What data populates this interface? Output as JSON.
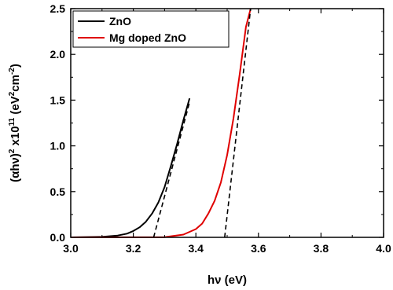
{
  "chart_data": {
    "type": "line",
    "xlabel": "hν (eV)",
    "ylabel": {
      "prefix": "(αhν)",
      "sup1": "2",
      "mid": " x10",
      "sup2": "11",
      "unit_open": " (eV",
      "sup3": "2",
      "unit_mid": "cm",
      "sup4": "-2",
      "unit_close": ")"
    },
    "xlim": [
      3.0,
      4.0
    ],
    "ylim": [
      0.0,
      2.5
    ],
    "xticks": [
      {
        "value": 3.0,
        "label": "3.0"
      },
      {
        "value": 3.2,
        "label": "3.2"
      },
      {
        "value": 3.4,
        "label": "3.4"
      },
      {
        "value": 3.6,
        "label": "3.6"
      },
      {
        "value": 3.8,
        "label": "3.8"
      },
      {
        "value": 4.0,
        "label": "4.0"
      }
    ],
    "yticks": [
      {
        "value": 0.0,
        "label": "0.0"
      },
      {
        "value": 0.5,
        "label": "0.5"
      },
      {
        "value": 1.0,
        "label": "1.0"
      },
      {
        "value": 1.5,
        "label": "1.5"
      },
      {
        "value": 2.0,
        "label": "2.0"
      },
      {
        "value": 2.5,
        "label": "2.5"
      }
    ],
    "grid": false,
    "legend": "top-left",
    "series": [
      {
        "name": "ZnO",
        "color": "#000000",
        "x": [
          3.0,
          3.1,
          3.15,
          3.18,
          3.2,
          3.22,
          3.24,
          3.26,
          3.28,
          3.3,
          3.32,
          3.34,
          3.36,
          3.38
        ],
        "y": [
          0.0,
          0.005,
          0.02,
          0.04,
          0.07,
          0.11,
          0.17,
          0.26,
          0.38,
          0.55,
          0.78,
          1.02,
          1.28,
          1.52
        ]
      },
      {
        "name": "Mg doped ZnO",
        "color": "#e00000",
        "x": [
          3.0,
          3.3,
          3.36,
          3.4,
          3.42,
          3.44,
          3.46,
          3.48,
          3.5,
          3.52,
          3.54,
          3.56,
          3.575
        ],
        "y": [
          0.0,
          0.003,
          0.03,
          0.09,
          0.15,
          0.26,
          0.4,
          0.6,
          0.9,
          1.3,
          1.78,
          2.3,
          2.5
        ]
      }
    ],
    "fit_lines": [
      {
        "x": [
          3.265,
          3.38
        ],
        "y": [
          0.0,
          1.48
        ]
      },
      {
        "x": [
          3.492,
          3.575
        ],
        "y": [
          0.0,
          2.5
        ]
      }
    ]
  }
}
